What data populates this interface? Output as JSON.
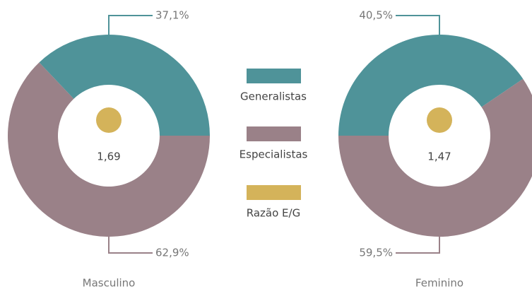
{
  "chart_data": [
    {
      "type": "donut",
      "title": "Masculino",
      "values": [
        37.1,
        62.9
      ],
      "value_labels": [
        "37,1%",
        "62,9%"
      ],
      "center_value": 1.69,
      "center_label": "1,69"
    },
    {
      "type": "donut",
      "title": "Feminino",
      "values": [
        40.5,
        59.5
      ],
      "value_labels": [
        "40,5%",
        "59,5%"
      ],
      "center_value": 1.47,
      "center_label": "1,47"
    }
  ],
  "legend": [
    {
      "name": "Generalistas",
      "color": "#4f9399"
    },
    {
      "name": "Especialistas",
      "color": "#9a8188"
    },
    {
      "name": "Razão E/G",
      "color": "#d4b35a"
    }
  ]
}
